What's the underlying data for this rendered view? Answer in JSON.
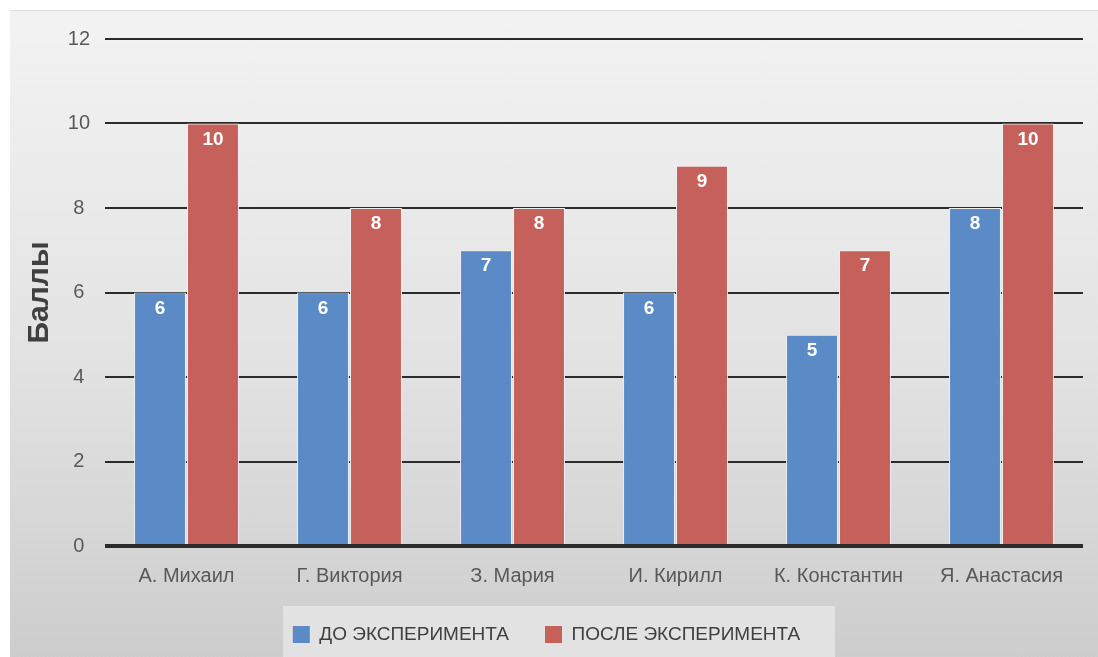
{
  "chart_data": {
    "type": "bar",
    "ylabel": "Баллы",
    "categories": [
      "А. Михаил",
      "Г. Виктория",
      "З. Мария",
      "И. Кирилл",
      "К. Константин",
      "Я. Анастасия"
    ],
    "series": [
      {
        "name": "ДО ЭКСПЕРИМЕНТА",
        "color": "#5b8bc6",
        "values": [
          6,
          6,
          7,
          6,
          5,
          8
        ]
      },
      {
        "name": "ПОСЛЕ ЭКСПЕРИМЕНТА",
        "color": "#c5605a",
        "values": [
          10,
          8,
          8,
          9,
          7,
          10
        ]
      }
    ],
    "ylim": [
      0,
      12
    ],
    "yticks": [
      0,
      2,
      4,
      6,
      8,
      10,
      12
    ],
    "grid": "y",
    "data_labels": true,
    "legend": "bottom"
  }
}
